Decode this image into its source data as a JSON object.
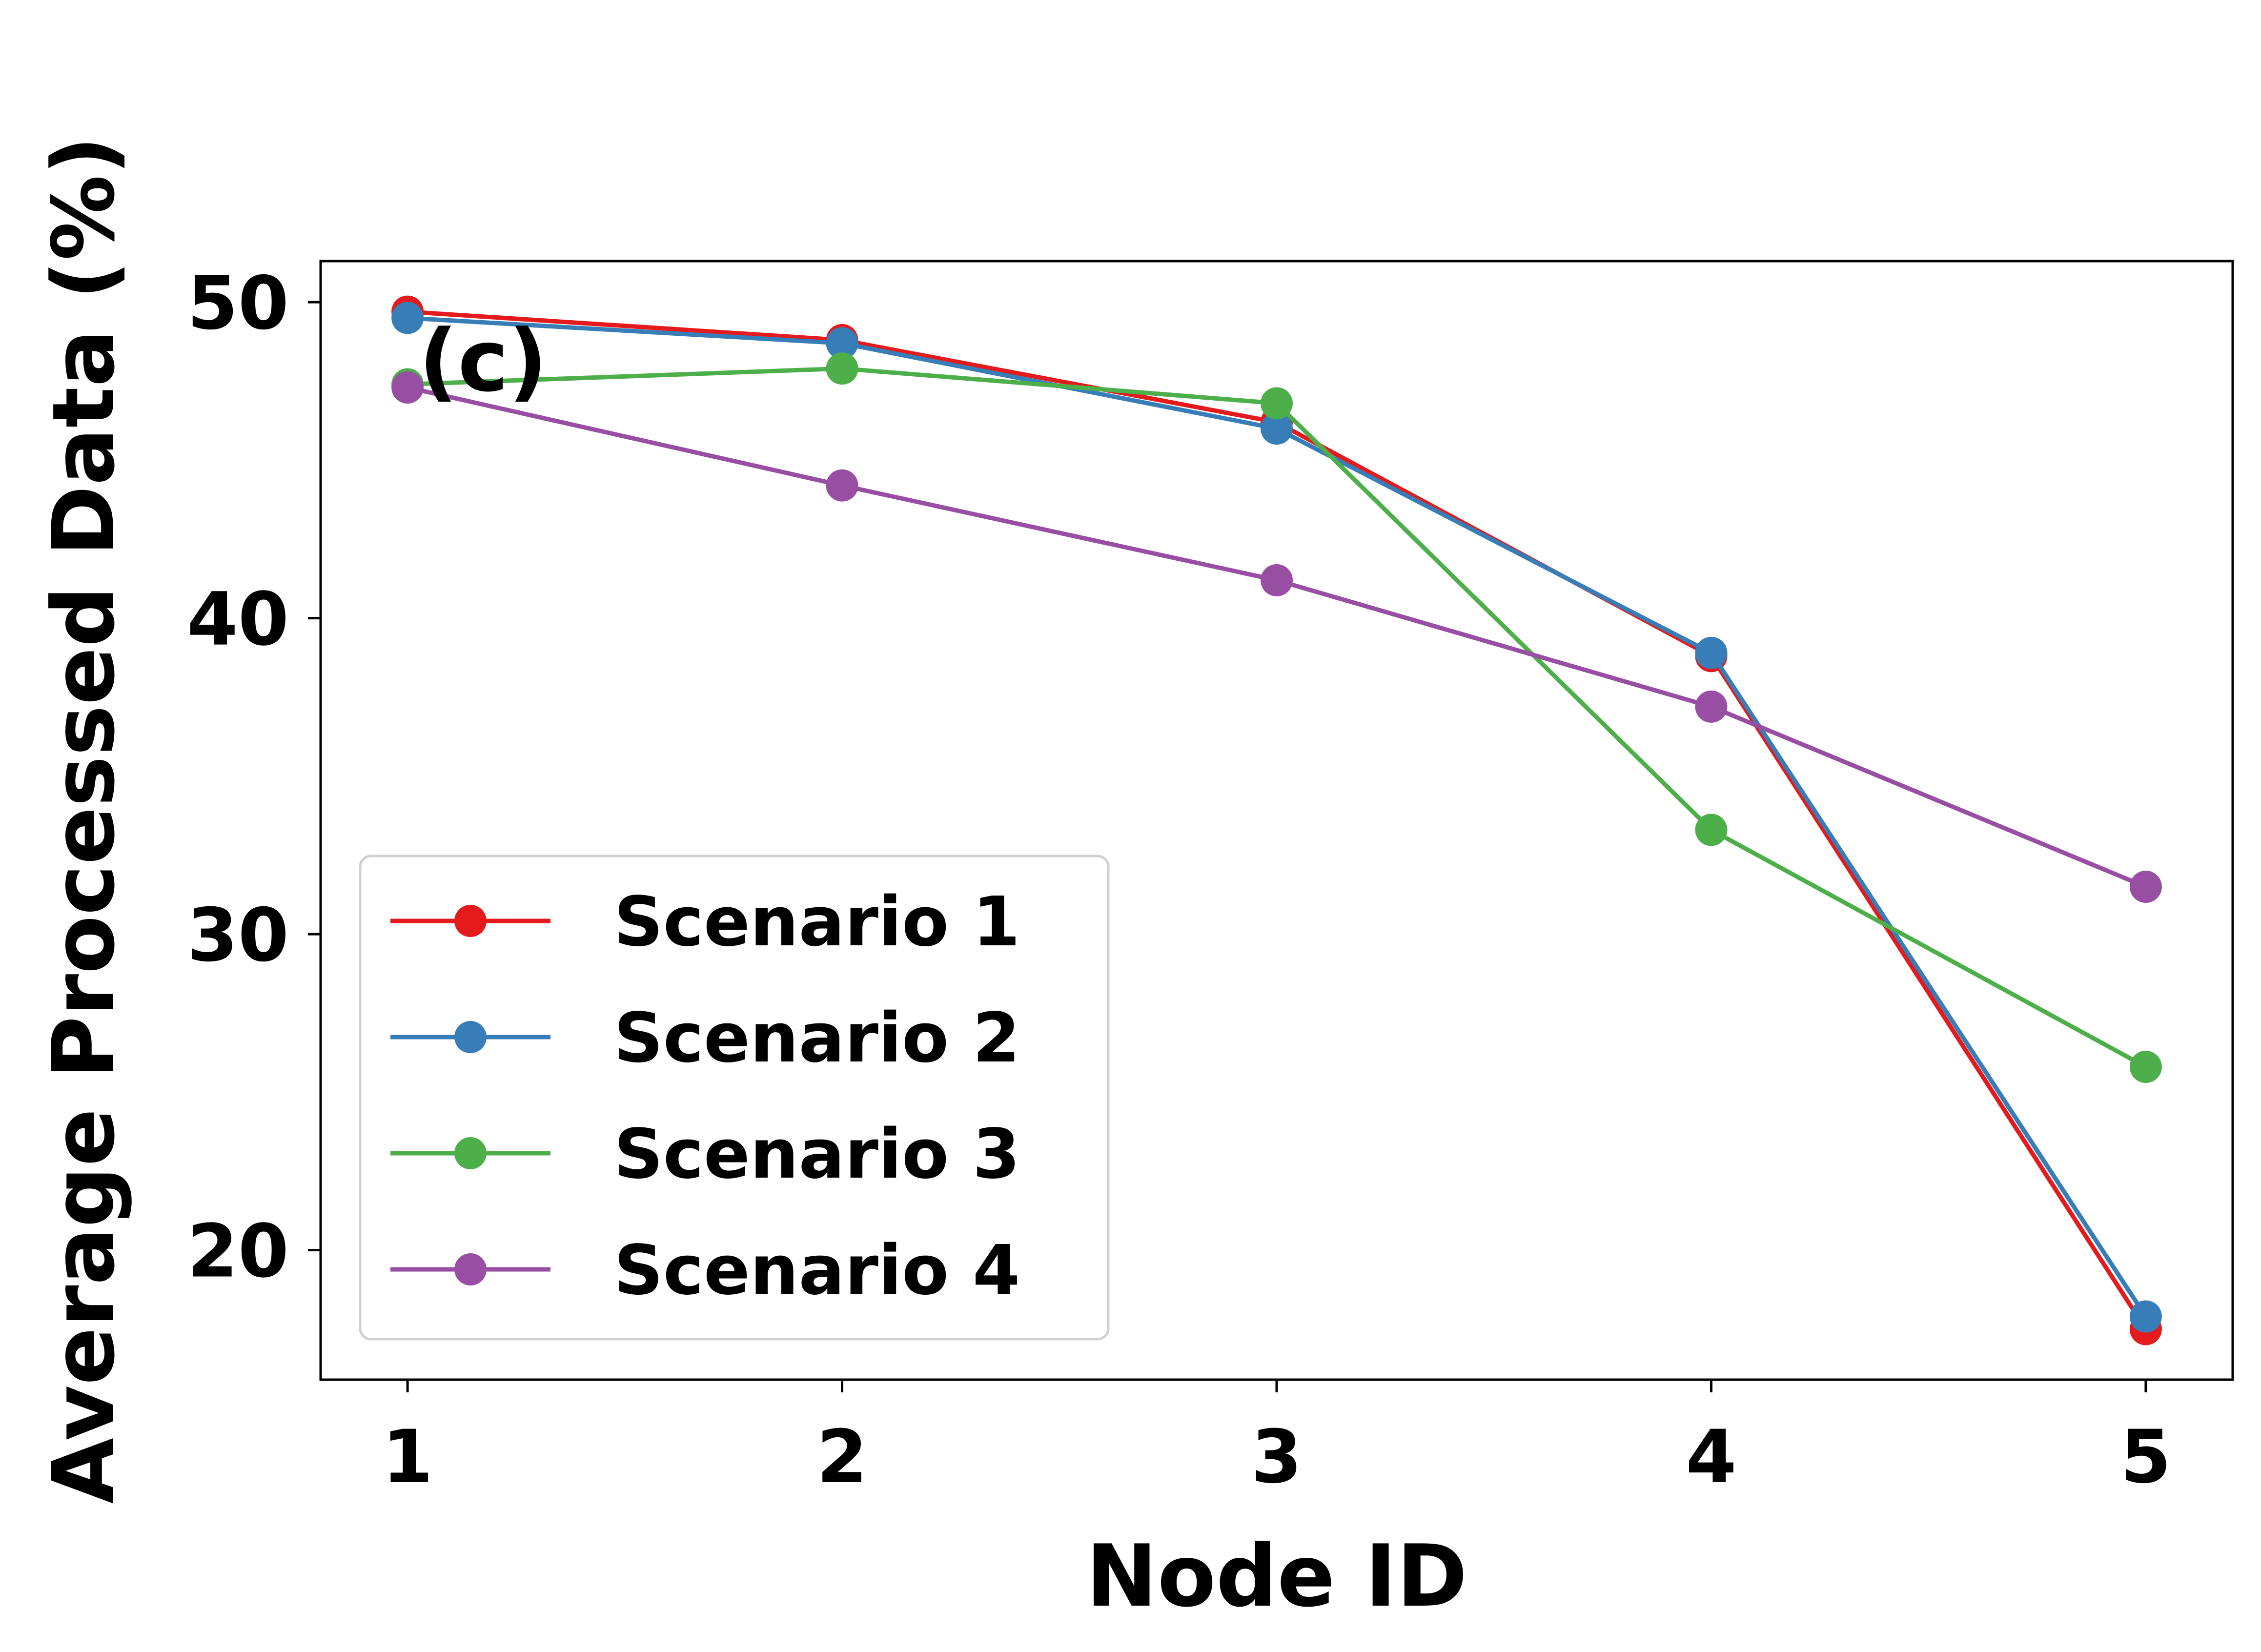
{
  "chart_data": {
    "type": "line",
    "panel_label": "(c)",
    "xlabel": "Node ID",
    "ylabel": "Average Processed Data (%)",
    "x": [
      1,
      2,
      3,
      4,
      5
    ],
    "xticks": [
      "1",
      "2",
      "3",
      "4",
      "5"
    ],
    "xlim": [
      0.8,
      5.2
    ],
    "yticks": [
      "20",
      "30",
      "40",
      "50"
    ],
    "ylim": [
      15.9,
      51.3
    ],
    "grid": false,
    "legend_position": "lower-left",
    "series": [
      {
        "name": "Scenario 1",
        "color": "#e41a1c",
        "values": [
          49.7,
          48.8,
          46.2,
          38.8,
          17.5
        ]
      },
      {
        "name": "Scenario 2",
        "color": "#377eb8",
        "values": [
          49.5,
          48.7,
          46.0,
          38.9,
          17.9
        ]
      },
      {
        "name": "Scenario 3",
        "color": "#4daf4a",
        "values": [
          47.4,
          47.9,
          46.8,
          33.3,
          25.8
        ]
      },
      {
        "name": "Scenario 4",
        "color": "#984ea3",
        "values": [
          47.3,
          44.2,
          41.2,
          37.2,
          31.5
        ]
      }
    ]
  }
}
